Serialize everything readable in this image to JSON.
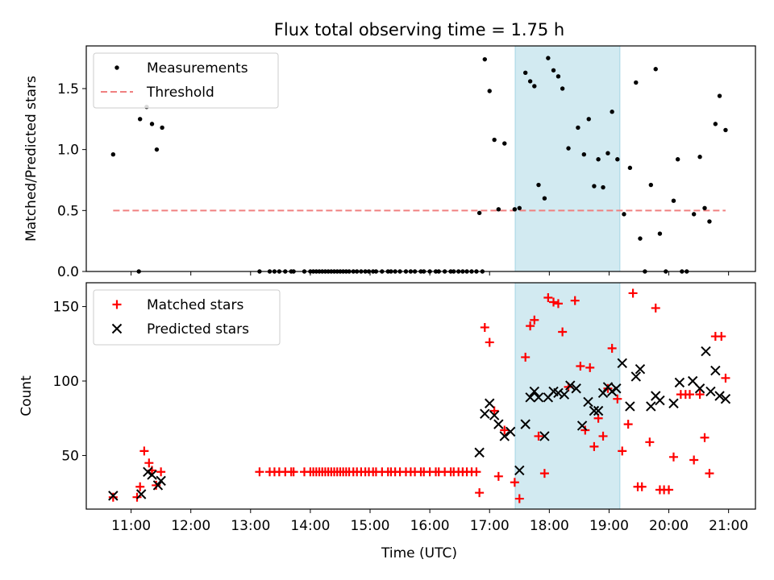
{
  "title": "Flux total observing time = 1.75 h",
  "xlabel": "Time (UTC)",
  "x_tick_labels": [
    "11:00",
    "12:00",
    "13:00",
    "14:00",
    "15:00",
    "16:00",
    "17:00",
    "18:00",
    "19:00",
    "20:00",
    "21:00"
  ],
  "colors": {
    "measure": "#000000",
    "threshold": "#f08080",
    "matched": "#ff0000",
    "predicted": "#000000",
    "shade": "#add8e6"
  },
  "chart_data": [
    {
      "type": "scatter",
      "ylabel": "Matched/Predicted stars",
      "x_unit": "hours UTC",
      "xlim": [
        10.25,
        21.45
      ],
      "ylim": [
        0,
        1.85
      ],
      "y_ticks": [
        0,
        0.5,
        1.0,
        1.5
      ],
      "y_tick_labels": [
        "0.0",
        "0.5",
        "1.0",
        "1.5"
      ],
      "shaded_region": [
        17.43,
        19.18
      ],
      "legend": {
        "placement": "upper left",
        "entries": [
          "Measurements",
          "Threshold"
        ]
      },
      "threshold": {
        "name": "Threshold",
        "y": 0.5,
        "x_range": [
          10.7,
          20.95
        ]
      },
      "series": [
        {
          "name": "Measurements",
          "points": [
            [
              10.7,
              0.96
            ],
            [
              11.15,
              1.25
            ],
            [
              11.26,
              1.35
            ],
            [
              11.35,
              1.21
            ],
            [
              11.43,
              1.0
            ],
            [
              11.52,
              1.18
            ],
            [
              11.13,
              0
            ],
            [
              13.15,
              0
            ],
            [
              13.32,
              0
            ],
            [
              13.4,
              0
            ],
            [
              13.48,
              0
            ],
            [
              13.58,
              0
            ],
            [
              13.68,
              0
            ],
            [
              13.72,
              0
            ],
            [
              13.9,
              0
            ],
            [
              14.0,
              0
            ],
            [
              14.05,
              0
            ],
            [
              14.1,
              0
            ],
            [
              14.15,
              0
            ],
            [
              14.2,
              0
            ],
            [
              14.25,
              0
            ],
            [
              14.3,
              0
            ],
            [
              14.35,
              0
            ],
            [
              14.4,
              0
            ],
            [
              14.45,
              0
            ],
            [
              14.5,
              0
            ],
            [
              14.55,
              0
            ],
            [
              14.6,
              0
            ],
            [
              14.65,
              0
            ],
            [
              14.72,
              0
            ],
            [
              14.78,
              0
            ],
            [
              14.85,
              0
            ],
            [
              14.92,
              0
            ],
            [
              14.98,
              0
            ],
            [
              15.05,
              0
            ],
            [
              15.1,
              0
            ],
            [
              15.2,
              0
            ],
            [
              15.3,
              0
            ],
            [
              15.35,
              0
            ],
            [
              15.42,
              0
            ],
            [
              15.5,
              0
            ],
            [
              15.6,
              0
            ],
            [
              15.68,
              0
            ],
            [
              15.75,
              0
            ],
            [
              15.85,
              0
            ],
            [
              15.9,
              0
            ],
            [
              16.0,
              0
            ],
            [
              16.1,
              0
            ],
            [
              16.15,
              0
            ],
            [
              16.25,
              0
            ],
            [
              16.35,
              0
            ],
            [
              16.4,
              0
            ],
            [
              16.48,
              0
            ],
            [
              16.55,
              0
            ],
            [
              16.62,
              0
            ],
            [
              16.7,
              0
            ],
            [
              16.78,
              0
            ],
            [
              16.88,
              0
            ],
            [
              16.83,
              0.48
            ],
            [
              16.92,
              1.74
            ],
            [
              17.0,
              1.48
            ],
            [
              17.08,
              1.08
            ],
            [
              17.15,
              0.51
            ],
            [
              17.25,
              1.05
            ],
            [
              17.42,
              0.51
            ],
            [
              17.5,
              0.52
            ],
            [
              17.6,
              1.63
            ],
            [
              17.68,
              1.56
            ],
            [
              17.75,
              1.52
            ],
            [
              17.82,
              0.71
            ],
            [
              17.92,
              0.6
            ],
            [
              17.98,
              1.75
            ],
            [
              18.07,
              1.65
            ],
            [
              18.15,
              1.6
            ],
            [
              18.22,
              1.5
            ],
            [
              18.32,
              1.01
            ],
            [
              18.48,
              1.18
            ],
            [
              18.58,
              0.96
            ],
            [
              18.66,
              1.25
            ],
            [
              18.75,
              0.7
            ],
            [
              18.82,
              0.92
            ],
            [
              18.9,
              0.69
            ],
            [
              18.98,
              0.97
            ],
            [
              19.05,
              1.31
            ],
            [
              19.14,
              0.92
            ],
            [
              19.25,
              0.47
            ],
            [
              19.35,
              0.85
            ],
            [
              19.45,
              1.55
            ],
            [
              19.52,
              0.27
            ],
            [
              19.6,
              0
            ],
            [
              19.7,
              0.71
            ],
            [
              19.78,
              1.66
            ],
            [
              19.85,
              0.31
            ],
            [
              19.95,
              0
            ],
            [
              20.08,
              0.58
            ],
            [
              20.15,
              0.92
            ],
            [
              20.22,
              0
            ],
            [
              20.3,
              0
            ],
            [
              20.42,
              0.47
            ],
            [
              20.52,
              0.94
            ],
            [
              20.6,
              0.52
            ],
            [
              20.68,
              0.41
            ],
            [
              20.78,
              1.21
            ],
            [
              20.85,
              1.44
            ],
            [
              20.95,
              1.16
            ]
          ]
        }
      ]
    },
    {
      "type": "scatter",
      "ylabel": "Count",
      "x_unit": "hours UTC",
      "xlim": [
        10.25,
        21.45
      ],
      "ylim": [
        14,
        166
      ],
      "y_ticks": [
        50,
        100,
        150
      ],
      "y_tick_labels": [
        "50",
        "100",
        "150"
      ],
      "shaded_region": [
        17.43,
        19.18
      ],
      "legend": {
        "placement": "upper left",
        "entries": [
          "Matched stars",
          "Predicted stars"
        ]
      },
      "series": [
        {
          "name": "Matched stars",
          "marker": "+",
          "points": [
            [
              10.7,
              22
            ],
            [
              11.1,
              22
            ],
            [
              11.15,
              29
            ],
            [
              11.22,
              53
            ],
            [
              11.3,
              45
            ],
            [
              11.35,
              40
            ],
            [
              11.42,
              30
            ],
            [
              11.5,
              39
            ],
            [
              13.15,
              39
            ],
            [
              13.32,
              39
            ],
            [
              13.4,
              39
            ],
            [
              13.48,
              39
            ],
            [
              13.58,
              39
            ],
            [
              13.68,
              39
            ],
            [
              13.72,
              39
            ],
            [
              13.9,
              39
            ],
            [
              14.0,
              39
            ],
            [
              14.05,
              39
            ],
            [
              14.1,
              39
            ],
            [
              14.15,
              39
            ],
            [
              14.2,
              39
            ],
            [
              14.25,
              39
            ],
            [
              14.3,
              39
            ],
            [
              14.35,
              39
            ],
            [
              14.4,
              39
            ],
            [
              14.45,
              39
            ],
            [
              14.5,
              39
            ],
            [
              14.55,
              39
            ],
            [
              14.6,
              39
            ],
            [
              14.65,
              39
            ],
            [
              14.72,
              39
            ],
            [
              14.78,
              39
            ],
            [
              14.85,
              39
            ],
            [
              14.92,
              39
            ],
            [
              14.98,
              39
            ],
            [
              15.05,
              39
            ],
            [
              15.1,
              39
            ],
            [
              15.2,
              39
            ],
            [
              15.3,
              39
            ],
            [
              15.35,
              39
            ],
            [
              15.42,
              39
            ],
            [
              15.5,
              39
            ],
            [
              15.6,
              39
            ],
            [
              15.68,
              39
            ],
            [
              15.75,
              39
            ],
            [
              15.85,
              39
            ],
            [
              15.9,
              39
            ],
            [
              16.0,
              39
            ],
            [
              16.1,
              39
            ],
            [
              16.15,
              39
            ],
            [
              16.25,
              39
            ],
            [
              16.35,
              39
            ],
            [
              16.4,
              39
            ],
            [
              16.48,
              39
            ],
            [
              16.55,
              39
            ],
            [
              16.62,
              39
            ],
            [
              16.7,
              39
            ],
            [
              16.78,
              39
            ],
            [
              16.83,
              25
            ],
            [
              16.92,
              136
            ],
            [
              17.0,
              126
            ],
            [
              17.08,
              80
            ],
            [
              17.15,
              36
            ],
            [
              17.25,
              67
            ],
            [
              17.42,
              32
            ],
            [
              17.5,
              21
            ],
            [
              17.6,
              116
            ],
            [
              17.68,
              137
            ],
            [
              17.75,
              141
            ],
            [
              17.82,
              63
            ],
            [
              17.92,
              38
            ],
            [
              17.98,
              156
            ],
            [
              18.07,
              153
            ],
            [
              18.15,
              152
            ],
            [
              18.22,
              133
            ],
            [
              18.32,
              96
            ],
            [
              18.43,
              154
            ],
            [
              18.52,
              110
            ],
            [
              18.6,
              67
            ],
            [
              18.68,
              109
            ],
            [
              18.75,
              56
            ],
            [
              18.82,
              75
            ],
            [
              18.9,
              63
            ],
            [
              18.98,
              95
            ],
            [
              19.05,
              122
            ],
            [
              19.14,
              88
            ],
            [
              19.22,
              53
            ],
            [
              19.32,
              71
            ],
            [
              19.4,
              159
            ],
            [
              19.48,
              29
            ],
            [
              19.55,
              29
            ],
            [
              19.68,
              59
            ],
            [
              19.78,
              149
            ],
            [
              19.85,
              27
            ],
            [
              19.92,
              27
            ],
            [
              20.0,
              27
            ],
            [
              20.08,
              49
            ],
            [
              20.2,
              91
            ],
            [
              20.28,
              91
            ],
            [
              20.35,
              91
            ],
            [
              20.42,
              47
            ],
            [
              20.52,
              91
            ],
            [
              20.6,
              62
            ],
            [
              20.68,
              38
            ],
            [
              20.78,
              130
            ],
            [
              20.88,
              130
            ],
            [
              20.95,
              102
            ]
          ]
        },
        {
          "name": "Predicted stars",
          "marker": "x",
          "points": [
            [
              10.7,
              23
            ],
            [
              11.17,
              24
            ],
            [
              11.28,
              39
            ],
            [
              11.35,
              37
            ],
            [
              11.45,
              30
            ],
            [
              11.5,
              33
            ],
            [
              16.83,
              52
            ],
            [
              16.92,
              78
            ],
            [
              17.0,
              85
            ],
            [
              17.08,
              77
            ],
            [
              17.15,
              71
            ],
            [
              17.25,
              63
            ],
            [
              17.35,
              66
            ],
            [
              17.5,
              40
            ],
            [
              17.6,
              71
            ],
            [
              17.68,
              89
            ],
            [
              17.75,
              93
            ],
            [
              17.82,
              89
            ],
            [
              17.92,
              63
            ],
            [
              17.98,
              89
            ],
            [
              18.07,
              93
            ],
            [
              18.15,
              92
            ],
            [
              18.25,
              91
            ],
            [
              18.35,
              97
            ],
            [
              18.45,
              95
            ],
            [
              18.55,
              70
            ],
            [
              18.65,
              86
            ],
            [
              18.75,
              80
            ],
            [
              18.82,
              80
            ],
            [
              18.9,
              92
            ],
            [
              18.98,
              96
            ],
            [
              19.05,
              93
            ],
            [
              19.12,
              95
            ],
            [
              19.22,
              112
            ],
            [
              19.35,
              83
            ],
            [
              19.45,
              103
            ],
            [
              19.52,
              108
            ],
            [
              19.7,
              83
            ],
            [
              19.78,
              90
            ],
            [
              19.85,
              87
            ],
            [
              20.08,
              85
            ],
            [
              20.18,
              99
            ],
            [
              20.4,
              100
            ],
            [
              20.52,
              95
            ],
            [
              20.62,
              120
            ],
            [
              20.7,
              93
            ],
            [
              20.78,
              107
            ],
            [
              20.85,
              90
            ],
            [
              20.95,
              88
            ]
          ]
        }
      ]
    }
  ]
}
